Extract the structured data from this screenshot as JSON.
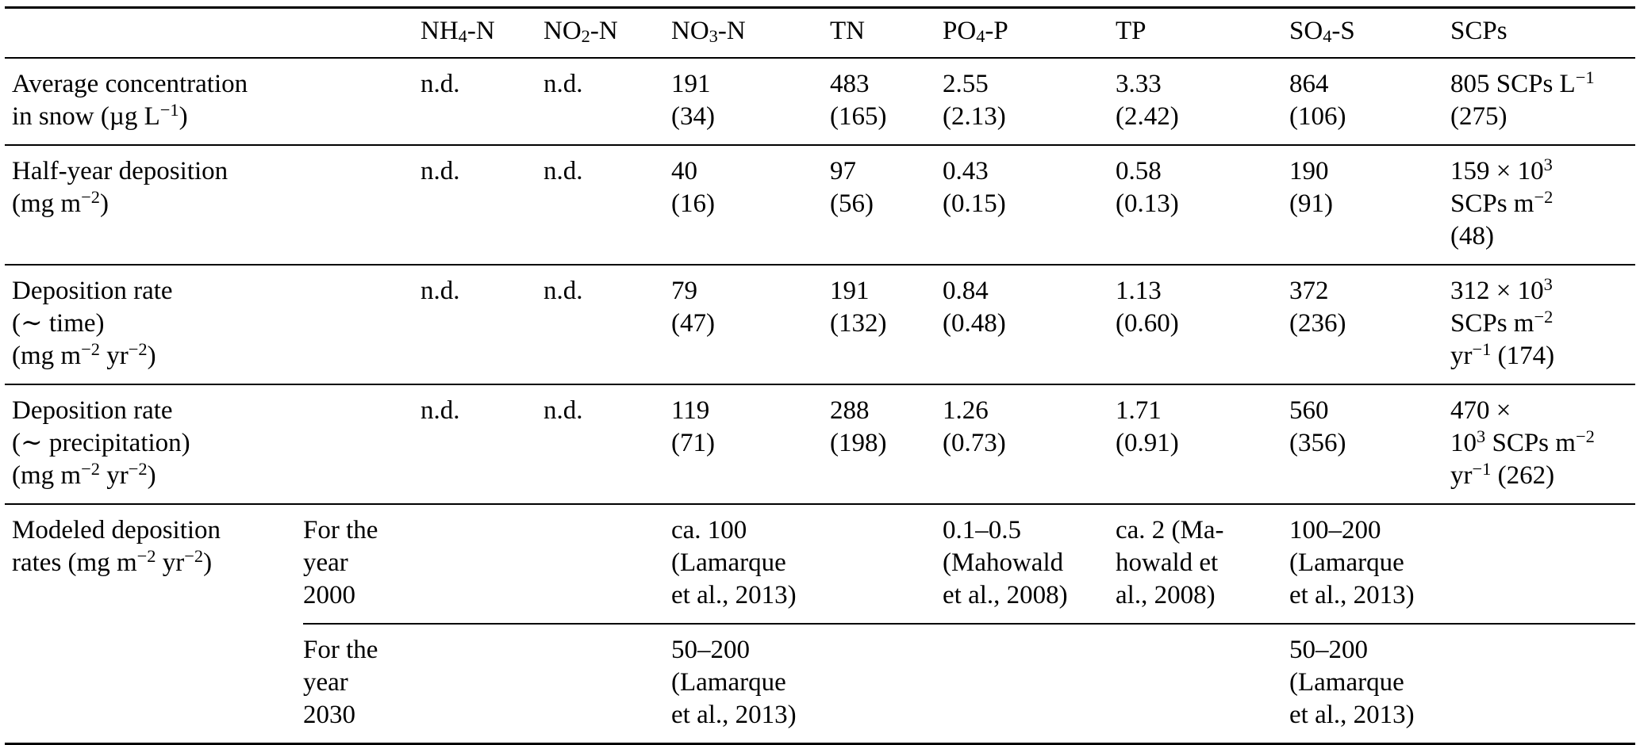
{
  "page": {
    "background_color": "#ffffff",
    "text_color": "#000000",
    "rule_color": "#000000"
  },
  "table": {
    "columns": [
      "",
      "NH<sub>4</sub>-N",
      "NO<sub>2</sub>-N",
      "NO<sub>3</sub>-N",
      "TN",
      "PO<sub>4</sub>-P",
      "TP",
      "SO<sub>4</sub>-S",
      "SCPs"
    ],
    "rows": [
      {
        "label": "Average concentration<br>in snow (µg L<sup>−1</sup>)",
        "cells": [
          "n.d.",
          "n.d.",
          "191<br>(34)",
          "483<br>(165)",
          "2.55<br>(2.13)",
          "3.33<br>(2.42)",
          "864<br>(106)",
          "805 SCPs L<sup>−1</sup><br>(275)"
        ]
      },
      {
        "label": "Half-year deposition<br>(mg m<sup>−2</sup>)",
        "cells": [
          "n.d.",
          "n.d.",
          "40<br>(16)",
          "97<br>(56)",
          "0.43<br>(0.15)",
          "0.58<br>(0.13)",
          "190<br>(91)",
          "159 × 10<sup>3</sup><br>SCPs m<sup>−2</sup><br>(48)"
        ]
      },
      {
        "label": "Deposition rate<br>(∼ time)<br>(mg m<sup>−2</sup> yr<sup>−2</sup>)",
        "cells": [
          "n.d.",
          "n.d.",
          "79<br>(47)",
          "191<br>(132)",
          "0.84<br>(0.48)",
          "1.13<br>(0.60)",
          "372<br>(236)",
          "312 × 10<sup>3</sup><br>SCPs m<sup>−2</sup><br>yr<sup>−1</sup> (174)"
        ]
      },
      {
        "label": "Deposition rate<br>(∼ precipitation)<br>(mg m<sup>−2</sup> yr<sup>−2</sup>)",
        "cells": [
          "n.d.",
          "n.d.",
          "119<br>(71)",
          "288<br>(198)",
          "1.26<br>(0.73)",
          "1.71<br>(0.91)",
          "560<br>(356)",
          "470 ×<br>10<sup>3</sup> SCPs m<sup>−2</sup><br>yr<sup>−1</sup> (262)"
        ]
      }
    ],
    "modeled": {
      "label": "Modeled deposition<br>rates (mg m<sup>−2</sup> yr<sup>−2</sup>)",
      "subrows": [
        {
          "period": "For the<br>year<br>2000",
          "cells": [
            "",
            "",
            "ca. 100<br>(Lamarque<br>et al., 2013)",
            "",
            "0.1–0.5<br>(Mahowald<br>et al., 2008)",
            "ca. 2 (Ma-<br>howald et<br>al., 2008)",
            "100–200<br>(Lamarque<br>et al., 2013)",
            ""
          ]
        },
        {
          "period": "For the<br>year<br>2030",
          "cells": [
            "",
            "",
            "50–200<br>(Lamarque<br>et al., 2013)",
            "",
            "",
            "",
            "50–200<br>(Lamarque<br>et al., 2013)",
            ""
          ]
        }
      ]
    }
  }
}
